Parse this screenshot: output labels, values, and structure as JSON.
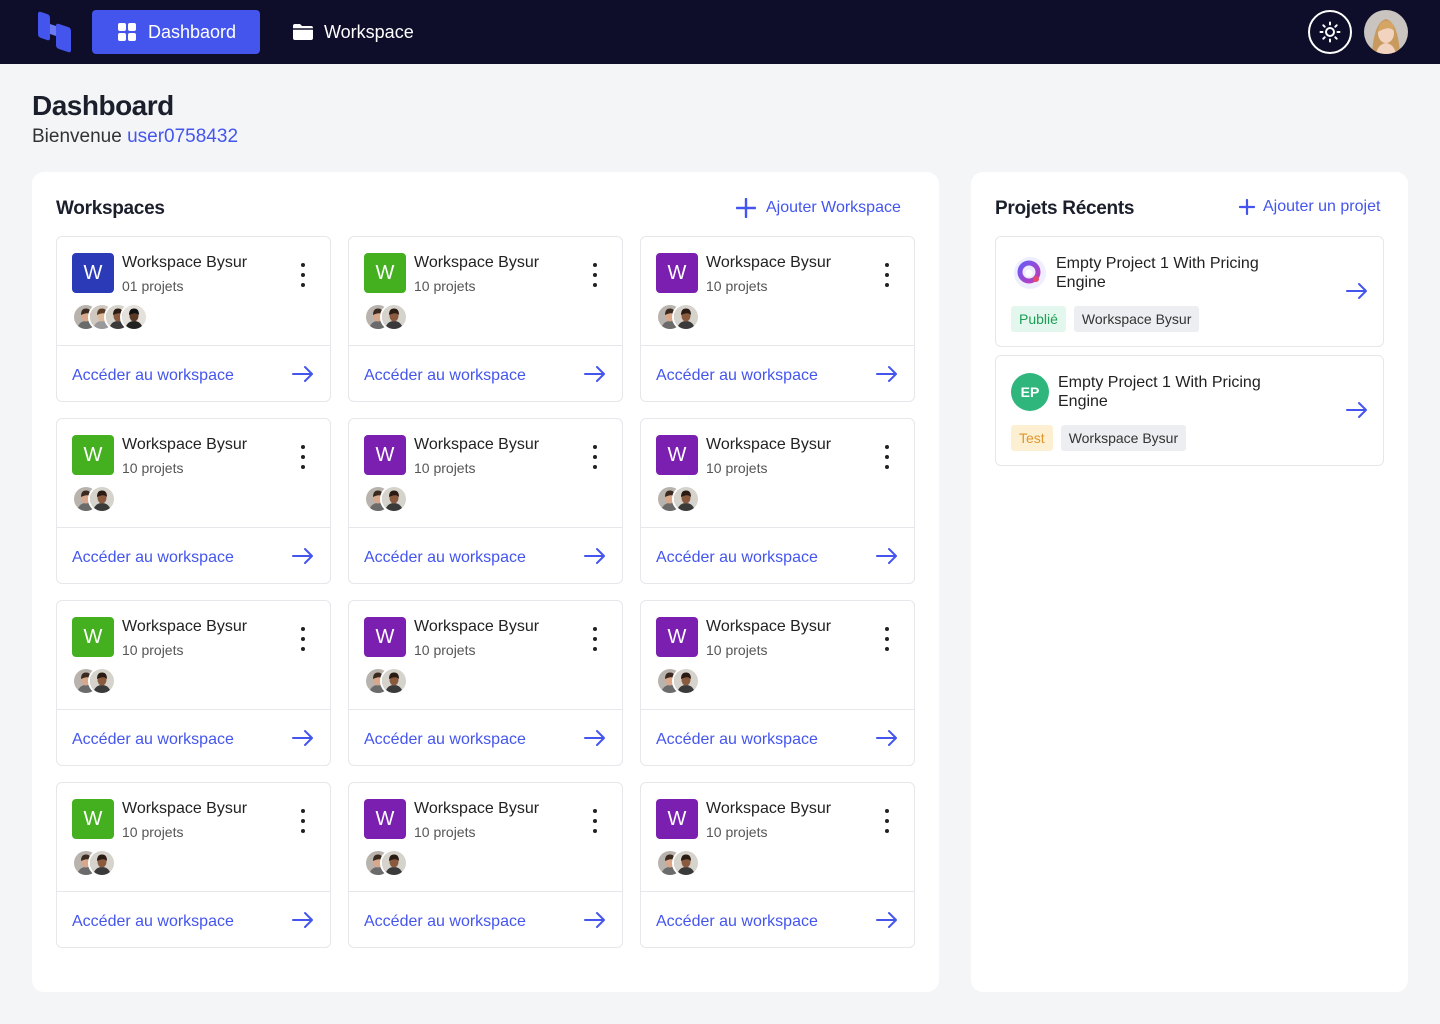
{
  "nav": {
    "dashboard_label": "Dashbaord",
    "workspace_label": "Workspace"
  },
  "header": {
    "title": "Dashboard",
    "welcome_prefix": "Bienvenue",
    "username": "user0758432"
  },
  "workspaces_panel": {
    "title": "Workspaces",
    "add_label": "Ajouter Workspace",
    "link_label": "Accéder au workspace",
    "items": [
      {
        "initial": "W",
        "color": "#2b3bb8",
        "name": "Workspace Bysur",
        "count": "01 projets",
        "members": 4
      },
      {
        "initial": "W",
        "color": "#44b01f",
        "name": "Workspace Bysur",
        "count": "10 projets",
        "members": 2
      },
      {
        "initial": "W",
        "color": "#7a1fb0",
        "name": "Workspace Bysur",
        "count": "10 projets",
        "members": 2
      },
      {
        "initial": "W",
        "color": "#44b01f",
        "name": "Workspace Bysur",
        "count": "10 projets",
        "members": 2
      },
      {
        "initial": "W",
        "color": "#7a1fb0",
        "name": "Workspace Bysur",
        "count": "10 projets",
        "members": 2
      },
      {
        "initial": "W",
        "color": "#7a1fb0",
        "name": "Workspace Bysur",
        "count": "10 projets",
        "members": 2
      },
      {
        "initial": "W",
        "color": "#44b01f",
        "name": "Workspace Bysur",
        "count": "10 projets",
        "members": 2
      },
      {
        "initial": "W",
        "color": "#7a1fb0",
        "name": "Workspace Bysur",
        "count": "10 projets",
        "members": 2
      },
      {
        "initial": "W",
        "color": "#7a1fb0",
        "name": "Workspace Bysur",
        "count": "10 projets",
        "members": 2
      },
      {
        "initial": "W",
        "color": "#44b01f",
        "name": "Workspace Bysur",
        "count": "10 projets",
        "members": 2
      },
      {
        "initial": "W",
        "color": "#7a1fb0",
        "name": "Workspace Bysur",
        "count": "10 projets",
        "members": 2
      },
      {
        "initial": "W",
        "color": "#7a1fb0",
        "name": "Workspace Bysur",
        "count": "10 projets",
        "members": 2
      }
    ]
  },
  "projects_panel": {
    "title": "Projets Récents",
    "add_label": "Ajouter un projet",
    "items": [
      {
        "icon": "q-logo",
        "initials": "",
        "name": "Empty Project 1 With Pricing Engine",
        "status": "Publié",
        "status_bg": "#e3f7ee",
        "status_color": "#1f9d55",
        "workspace": "Workspace Bysur"
      },
      {
        "icon": "initials",
        "initials": "EP",
        "name": "Empty Project 1 With Pricing Engine",
        "status": "Test",
        "status_bg": "#fdf0d2",
        "status_color": "#e0962a",
        "workspace": "Workspace Bysur"
      }
    ]
  },
  "colors": {
    "accent": "#4455ee",
    "topbar": "#0e0e2a",
    "ep_badge": "#2fb67c"
  }
}
